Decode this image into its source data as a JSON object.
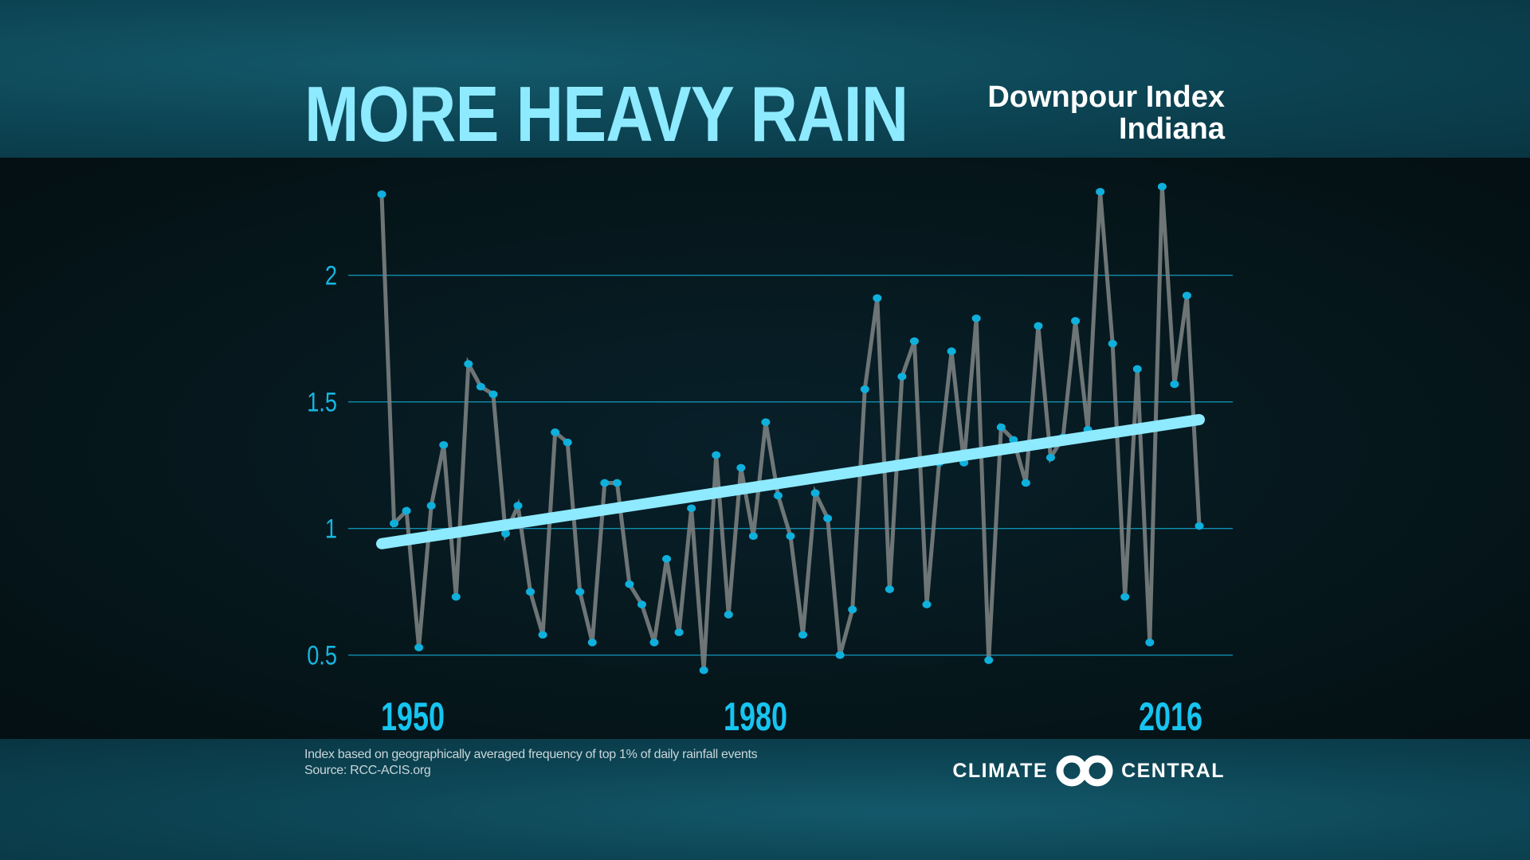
{
  "header": {
    "title": "MORE HEAVY RAIN",
    "subtitle_line1": "Downpour Index",
    "subtitle_line2": "Indiana"
  },
  "footer": {
    "note": "Index based on geographically averaged frequency of top 1% of daily rainfall events",
    "source": "Source: RCC-ACIS.org",
    "logo_left": "CLIMATE",
    "logo_right": "CENTRAL"
  },
  "colors": {
    "title": "#8eeaff",
    "points": "#0fb0dc",
    "line": "#7a7f80",
    "trend": "#8eeaff",
    "grid": "#0f8fb0",
    "ticks": "#16b6e0"
  },
  "chart_data": {
    "type": "line",
    "title": "MORE HEAVY RAIN",
    "subtitle": "Downpour Index Indiana",
    "xlabel": "",
    "ylabel": "",
    "xlim": [
      1950,
      2016
    ],
    "ylim": [
      0.4,
      2.4
    ],
    "yticks": [
      0.5,
      1,
      1.5,
      2
    ],
    "ytick_labels": [
      "0.5",
      "1",
      "1.5",
      "2"
    ],
    "xtick_labels": [
      "1950",
      "1980",
      "2016"
    ],
    "xticks": [
      1950,
      1980,
      2016
    ],
    "grid": "horizontal",
    "x": [
      1950,
      1951,
      1952,
      1953,
      1954,
      1955,
      1956,
      1957,
      1958,
      1959,
      1960,
      1961,
      1962,
      1963,
      1964,
      1965,
      1966,
      1967,
      1968,
      1969,
      1970,
      1971,
      1972,
      1973,
      1974,
      1975,
      1976,
      1977,
      1978,
      1979,
      1980,
      1981,
      1982,
      1983,
      1984,
      1985,
      1986,
      1987,
      1988,
      1989,
      1990,
      1991,
      1992,
      1993,
      1994,
      1995,
      1996,
      1997,
      1998,
      1999,
      2000,
      2001,
      2002,
      2003,
      2004,
      2005,
      2006,
      2007,
      2008,
      2009,
      2010,
      2011,
      2012,
      2013,
      2014,
      2015,
      2016
    ],
    "values": [
      2.32,
      1.02,
      1.07,
      0.53,
      1.09,
      1.33,
      0.73,
      1.65,
      1.56,
      1.53,
      0.98,
      1.09,
      0.75,
      0.58,
      1.38,
      1.34,
      0.75,
      0.55,
      1.18,
      1.18,
      0.78,
      0.7,
      0.55,
      0.88,
      0.59,
      1.08,
      0.44,
      1.29,
      0.66,
      1.24,
      0.97,
      1.42,
      1.13,
      0.97,
      0.58,
      1.14,
      1.04,
      0.5,
      0.68,
      1.55,
      1.91,
      0.76,
      1.6,
      1.74,
      0.7,
      1.26,
      1.7,
      1.26,
      1.83,
      0.48,
      1.4,
      1.35,
      1.18,
      1.8,
      1.28,
      1.36,
      1.82,
      1.39,
      2.33,
      1.73,
      0.73,
      1.63,
      0.55,
      2.35,
      1.57,
      1.92,
      1.01
    ],
    "trend": {
      "start": [
        1950,
        0.94
      ],
      "end": [
        2016,
        1.43
      ]
    }
  }
}
